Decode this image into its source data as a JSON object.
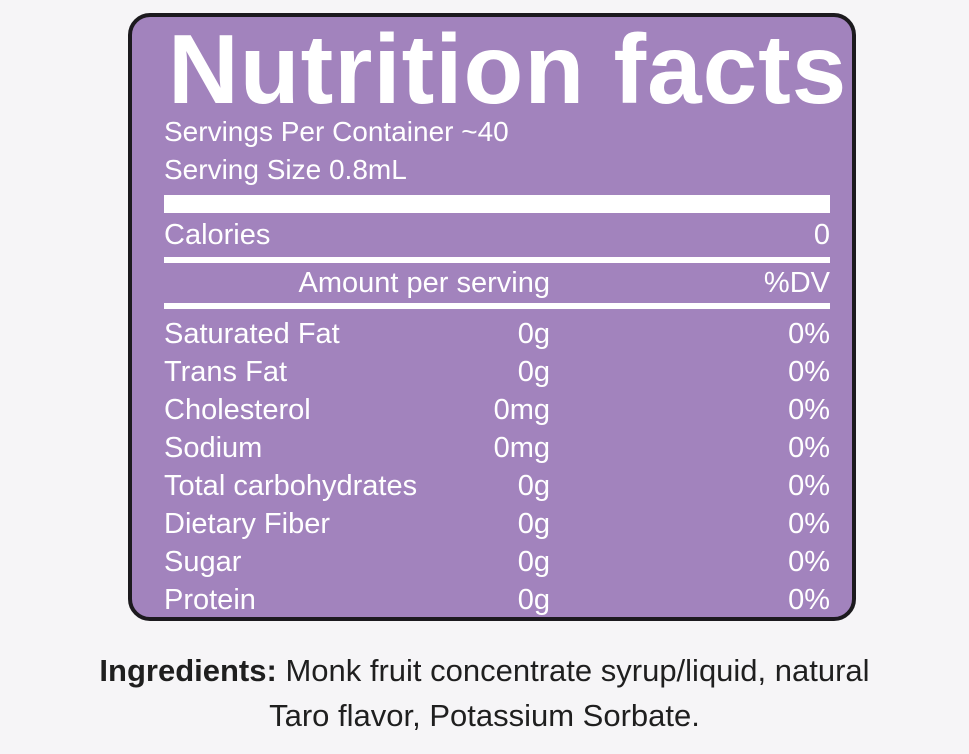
{
  "label": {
    "title": "Nutrition facts",
    "servings_per_container": "Servings Per Container ~40",
    "serving_size": "Serving Size 0.8mL",
    "calories_label": "Calories",
    "calories_value": "0",
    "amount_per_serving": "Amount per serving",
    "dv_header": "%DV",
    "nutrients": [
      {
        "name": "Saturated Fat",
        "amount": "0g",
        "dv": "0%"
      },
      {
        "name": "Trans Fat",
        "amount": "0g",
        "dv": "0%"
      },
      {
        "name": "Cholesterol",
        "amount": "0mg",
        "dv": "0%"
      },
      {
        "name": "Sodium",
        "amount": "0mg",
        "dv": "0%"
      },
      {
        "name": "Total carbohydrates",
        "amount": "0g",
        "dv": "0%"
      },
      {
        "name": "Dietary Fiber",
        "amount": "0g",
        "dv": "0%"
      },
      {
        "name": "Sugar",
        "amount": "0g",
        "dv": "0%"
      },
      {
        "name": "Protein",
        "amount": "0g",
        "dv": "0%"
      }
    ]
  },
  "ingredients": {
    "label": "Ingredients:",
    "line1": "Monk fruit concentrate syrup/liquid, natural",
    "line2": "Taro flavor, Potassium Sorbate."
  },
  "colors": {
    "panel_background": "#a283bd",
    "panel_border": "#1c1a1e",
    "label_text": "#ffffff",
    "page_background": "#f6f5f7"
  }
}
